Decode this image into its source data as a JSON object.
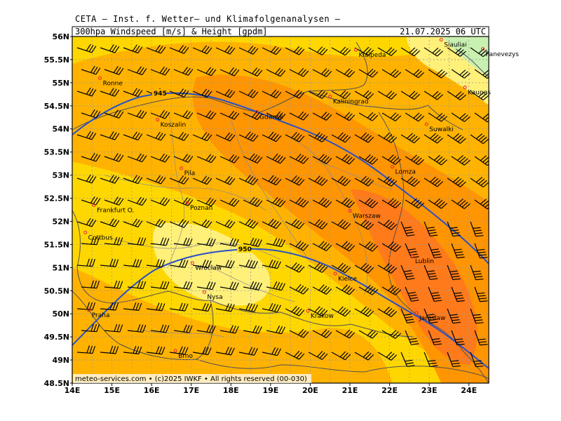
{
  "header": {
    "line1": "CETA — Inst. f. Wetter— und Klimafolgenanalysen —",
    "line2_left": "300hpa Windspeed [m/s] & Height [gpdm]",
    "line2_right": "21.07.2025 06 UTC"
  },
  "footer": "meteo-services.com • (c)2025 IWKF • All rights reserved (00-030)",
  "axes": {
    "lon_labels": [
      "14E",
      "15E",
      "16E",
      "17E",
      "18E",
      "19E",
      "20E",
      "21E",
      "22E",
      "23E",
      "24E"
    ],
    "lat_labels": [
      "56N",
      "55.5N",
      "55N",
      "54.5N",
      "54N",
      "53.5N",
      "53N",
      "52.5N",
      "52N",
      "51.5N",
      "51N",
      "50.5N",
      "50N",
      "49.5N",
      "49N",
      "48.5N"
    ],
    "lon_range": [
      14,
      24.5
    ],
    "lat_range": [
      48.5,
      56
    ]
  },
  "contours": [
    {
      "label": "945"
    },
    {
      "label": "950"
    }
  ],
  "cities": [
    {
      "name": "Siauliai",
      "lon": 23.3,
      "lat": 55.93
    },
    {
      "name": "Panevezys",
      "lon": 24.35,
      "lat": 55.73
    },
    {
      "name": "Klaipeda",
      "lon": 21.15,
      "lat": 55.71
    },
    {
      "name": "Kaunas",
      "lon": 23.9,
      "lat": 54.9
    },
    {
      "name": "Ronne",
      "lon": 14.7,
      "lat": 55.1
    },
    {
      "name": "Kaliningrad",
      "lon": 20.5,
      "lat": 54.7
    },
    {
      "name": "Gdansk",
      "lon": 18.65,
      "lat": 54.37
    },
    {
      "name": "Koszalin",
      "lon": 16.15,
      "lat": 54.2
    },
    {
      "name": "Suwalki",
      "lon": 22.93,
      "lat": 54.1
    },
    {
      "name": "Pila",
      "lon": 16.75,
      "lat": 53.15
    },
    {
      "name": "Lomza",
      "lon": 22.07,
      "lat": 53.18
    },
    {
      "name": "Frankfurt O.",
      "lon": 14.55,
      "lat": 52.35
    },
    {
      "name": "Poznan",
      "lon": 16.9,
      "lat": 52.4
    },
    {
      "name": "Warszaw",
      "lon": 21.0,
      "lat": 52.23
    },
    {
      "name": "Cottbus",
      "lon": 14.33,
      "lat": 51.76
    },
    {
      "name": "Lublin",
      "lon": 22.57,
      "lat": 51.25
    },
    {
      "name": "Wroclaw",
      "lon": 17.03,
      "lat": 51.1
    },
    {
      "name": "Kielce",
      "lon": 20.63,
      "lat": 50.87
    },
    {
      "name": "Nysa",
      "lon": 17.33,
      "lat": 50.47
    },
    {
      "name": "Praha",
      "lon": 14.42,
      "lat": 50.08
    },
    {
      "name": "Krakow",
      "lon": 19.94,
      "lat": 50.06
    },
    {
      "name": "Jaroslaw",
      "lon": 22.68,
      "lat": 50.02
    },
    {
      "name": "Brno",
      "lon": 16.6,
      "lat": 49.2
    }
  ],
  "colors": {
    "band_low": "#fff07a",
    "band_mid": "#ffd700",
    "band_high": "#ffb300",
    "band_higher": "#ff9500",
    "band_max": "#ff7a1a",
    "band_green": "#c8f0b0",
    "contour": "#2850c8",
    "border": "#505050",
    "grid": "#9a9a9a",
    "city_marker": "#e8203c"
  }
}
